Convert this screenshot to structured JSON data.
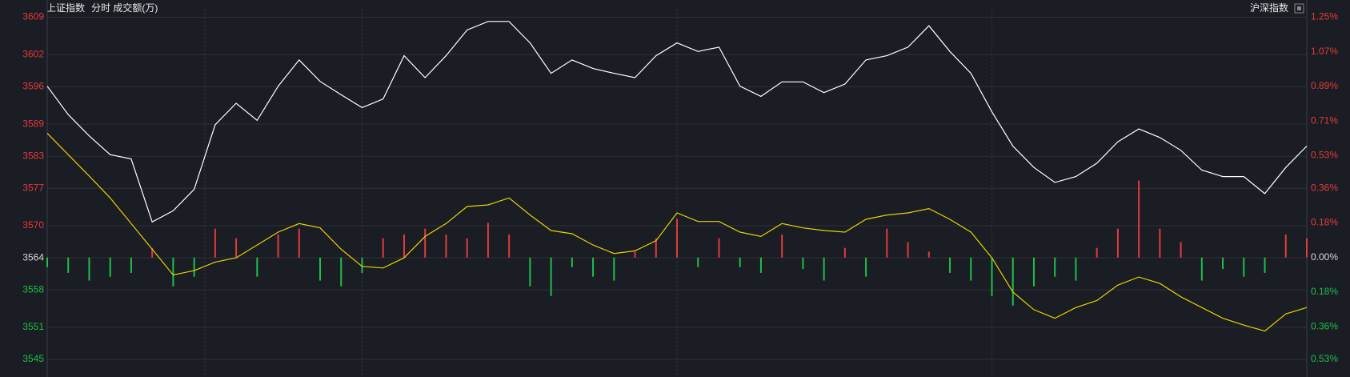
{
  "chart_data": {
    "type": "line",
    "title": "上证指数",
    "subtitle": "分时 成交额(万)",
    "index_label": "沪深指数",
    "x": [
      0,
      4,
      8,
      12,
      16,
      20,
      24,
      28,
      32,
      36,
      40,
      44,
      48,
      52,
      56,
      60,
      64,
      68,
      72,
      76,
      80,
      84,
      88,
      92,
      96,
      100,
      104,
      108,
      112,
      116,
      120,
      124,
      128,
      132,
      136,
      140,
      144,
      148,
      152,
      156,
      160,
      164,
      168,
      172,
      176,
      180,
      184,
      188,
      192,
      196,
      200,
      204,
      208,
      212,
      216,
      220,
      224,
      228,
      232,
      236,
      240
    ],
    "xlim": [
      0,
      240
    ],
    "series": [
      {
        "color": "#ffffff",
        "values": [
          3596.1,
          3590.8,
          3586.8,
          3583.3,
          3582.5,
          3570.7,
          3572.8,
          3576.8,
          3588.9,
          3592.9,
          3589.7,
          3596.1,
          3601,
          3597,
          3594.5,
          3592.1,
          3593.7,
          3601.8,
          3597.7,
          3601.8,
          3606.6,
          3608.2,
          3608.2,
          3604.2,
          3598.5,
          3601,
          3599.4,
          3598.5,
          3597.7,
          3601.8,
          3604.2,
          3602.6,
          3603.4,
          3596.1,
          3594.2,
          3596.9,
          3596.9,
          3594.9,
          3596.5,
          3601,
          3601.8,
          3603.4,
          3607.4,
          3602.6,
          3598.5,
          3591.3,
          3584.9,
          3580.9,
          3578.1,
          3579.2,
          3581.7,
          3585.7,
          3588.1,
          3586.5,
          3584.1,
          3580.4,
          3579.2,
          3579.2,
          3576,
          3580.9,
          3584.9
        ]
      },
      {
        "color": "#e6d200",
        "values": [
          3587.3,
          3583.3,
          3579.3,
          3575.2,
          3570.4,
          3565.6,
          3560.8,
          3561.6,
          3563.2,
          3564,
          3566.4,
          3568.8,
          3570.4,
          3569.6,
          3565.6,
          3562.4,
          3562.1,
          3564,
          3568,
          3570.4,
          3573.6,
          3573.9,
          3575.2,
          3572,
          3569.1,
          3568.5,
          3566.4,
          3564.8,
          3565.3,
          3567.2,
          3572.4,
          3570.8,
          3570.8,
          3568.8,
          3568,
          3570.4,
          3569.6,
          3569.1,
          3568.8,
          3571.2,
          3572,
          3572.4,
          3573.2,
          3571.2,
          3568.8,
          3564,
          3557.6,
          3554.3,
          3552.7,
          3554.7,
          3556,
          3558.9,
          3560.4,
          3559.2,
          3556.7,
          3554.7,
          3552.7,
          3551.4,
          3550.3,
          3553.5,
          3554.7
        ]
      }
    ],
    "bars": {
      "axis": "y2",
      "up_color": "#e23b3b",
      "down_color": "#1fbf4a",
      "values": [
        -0.05,
        -0.08,
        -0.12,
        -0.1,
        -0.08,
        0.05,
        -0.15,
        -0.1,
        0.15,
        0.1,
        -0.1,
        0.12,
        0.15,
        -0.12,
        -0.15,
        -0.08,
        0.1,
        0.12,
        0.15,
        0.12,
        0.1,
        0.18,
        0.12,
        -0.15,
        -0.2,
        -0.05,
        -0.1,
        -0.12,
        0.03,
        0.1,
        0.2,
        -0.05,
        0.1,
        -0.05,
        -0.08,
        0.12,
        -0.06,
        -0.12,
        0.05,
        -0.1,
        0.15,
        0.08,
        0.03,
        -0.08,
        -0.12,
        -0.2,
        -0.25,
        -0.15,
        -0.1,
        -0.12,
        0.05,
        0.15,
        0.4,
        0.15,
        0.08,
        -0.12,
        -0.06,
        -0.1,
        -0.08,
        0.12,
        0.1
      ]
    },
    "ylim": [
      3545,
      3609
    ],
    "yticks": [
      3609,
      3602,
      3596,
      3589,
      3583,
      3577,
      3570,
      3564,
      3558,
      3551,
      3545
    ],
    "y2lim": [
      -0.53,
      1.25
    ],
    "y2ticks": [
      {
        "value": 1.25,
        "label": "1.25%"
      },
      {
        "value": 1.07,
        "label": "1.07%"
      },
      {
        "value": 0.89,
        "label": "0.89%"
      },
      {
        "value": 0.71,
        "label": "0.71%"
      },
      {
        "value": 0.53,
        "label": "0.53%"
      },
      {
        "value": 0.36,
        "label": "0.36%"
      },
      {
        "value": 0.18,
        "label": "0.18%"
      },
      {
        "value": 0,
        "label": "0.00%"
      },
      {
        "value": -0.18,
        "label": "0.18%"
      },
      {
        "value": -0.36,
        "label": "0.36%"
      },
      {
        "value": -0.53,
        "label": "0.53%"
      }
    ],
    "up_label_color": "#e23b3b",
    "down_label_color": "#1fbf4a",
    "flat_label_color": "#d8d8d8",
    "grid": true
  }
}
